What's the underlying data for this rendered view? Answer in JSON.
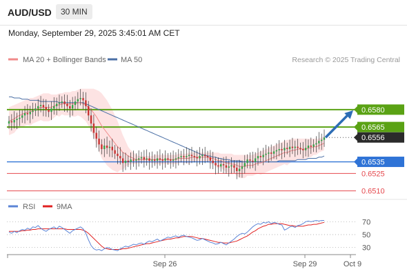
{
  "header": {
    "symbol": "AUD/USD",
    "timeframe": "30 MIN",
    "datetime": "Monday, September 29, 2025 3:45:01 AM CET"
  },
  "credit": "Research © 2025 Trading Central",
  "colors": {
    "bull": "#36a14a",
    "bear": "#c73232",
    "ma20": "#f08a8a",
    "bollinger_fill": "#fde3e3",
    "ma50": "#4a6fa5",
    "resistance": "#5aa214",
    "support_blue": "#2f73d6",
    "support_red": "#e5484d",
    "rsi": "#5b84d6",
    "rsi_ma": "#e02020",
    "arrow": "#2d6db5"
  },
  "chart_data": [
    {
      "type": "candlestick",
      "legend": [
        "MA 20 + Bollinger Bands",
        "MA 50"
      ],
      "ylim": [
        0.6505,
        0.6615
      ],
      "x_ticks": [
        "Sep 26",
        "Sep 29",
        "Oct 9"
      ],
      "closes": [
        0.657,
        0.6569,
        0.6571,
        0.6572,
        0.6573,
        0.6575,
        0.6577,
        0.6576,
        0.6578,
        0.6579,
        0.6581,
        0.6583,
        0.6584,
        0.6582,
        0.658,
        0.6578,
        0.6581,
        0.6583,
        0.6585,
        0.6586,
        0.6587,
        0.6585,
        0.6583,
        0.6581,
        0.6584,
        0.6587,
        0.6589,
        0.659,
        0.6588,
        0.6583,
        0.6575,
        0.6568,
        0.656,
        0.6555,
        0.655,
        0.6546,
        0.6549,
        0.6547,
        0.6548,
        0.6545,
        0.6542,
        0.654,
        0.6538,
        0.6534,
        0.6536,
        0.6535,
        0.6537,
        0.6536,
        0.6537,
        0.6538,
        0.6539,
        0.6537,
        0.6538,
        0.6536,
        0.6537,
        0.6536,
        0.6538,
        0.6537,
        0.6536,
        0.6538,
        0.6537,
        0.6536,
        0.6537,
        0.6538,
        0.6539,
        0.654,
        0.6539,
        0.654,
        0.6541,
        0.654,
        0.6539,
        0.6538,
        0.654,
        0.6541,
        0.654,
        0.6539,
        0.6536,
        0.6534,
        0.6532,
        0.6531,
        0.6533,
        0.6532,
        0.653,
        0.6531,
        0.6532,
        0.653,
        0.6527,
        0.6529,
        0.6531,
        0.6534,
        0.6537,
        0.6536,
        0.6535,
        0.6538,
        0.654,
        0.6539,
        0.6541,
        0.6542,
        0.6543,
        0.6542,
        0.6544,
        0.6545,
        0.6546,
        0.6545,
        0.6547,
        0.6546,
        0.6548,
        0.6547,
        0.6548,
        0.6547,
        0.6546,
        0.6545,
        0.6547,
        0.6549,
        0.6548,
        0.655,
        0.6551,
        0.6553,
        0.6554,
        0.6556
      ],
      "ma20": [
        0.657,
        0.6571,
        0.6572,
        0.6574,
        0.6575,
        0.6576,
        0.6577,
        0.6578,
        0.6578,
        0.6579,
        0.658,
        0.6581,
        0.6582,
        0.6582,
        0.6582,
        0.6582,
        0.6582,
        0.6583,
        0.6584,
        0.6584,
        0.6585,
        0.6585,
        0.6585,
        0.6585,
        0.6585,
        0.6585,
        0.6586,
        0.6586,
        0.6585,
        0.6584,
        0.6582,
        0.658,
        0.6577,
        0.6574,
        0.657,
        0.6566,
        0.6563,
        0.656,
        0.6557,
        0.6554,
        0.6551,
        0.6548,
        0.6546,
        0.6543,
        0.6542,
        0.654,
        0.6539,
        0.6538,
        0.6537,
        0.6537,
        0.6537,
        0.6537,
        0.6537,
        0.6537,
        0.6537,
        0.6537,
        0.6537,
        0.6537,
        0.6537,
        0.6537,
        0.6537,
        0.6537,
        0.6537,
        0.6537,
        0.6538,
        0.6538,
        0.6538,
        0.6538,
        0.6538,
        0.6539,
        0.6539,
        0.6539,
        0.6539,
        0.6539,
        0.6539,
        0.6539,
        0.6538,
        0.6538,
        0.6537,
        0.6536,
        0.6536,
        0.6535,
        0.6534,
        0.6534,
        0.6533,
        0.6533,
        0.6532,
        0.6531,
        0.6531,
        0.6531,
        0.6532,
        0.6532,
        0.6532,
        0.6533,
        0.6534,
        0.6534,
        0.6535,
        0.6536,
        0.6537,
        0.6538,
        0.6539,
        0.654,
        0.6541,
        0.6542,
        0.6543,
        0.6543,
        0.6544,
        0.6545,
        0.6545,
        0.6546,
        0.6546,
        0.6546,
        0.6546,
        0.6547,
        0.6547,
        0.6548,
        0.6548,
        0.6549,
        0.655,
        0.6551
      ],
      "bb_upper": [
        0.6582,
        0.6583,
        0.6584,
        0.6585,
        0.6586,
        0.6587,
        0.6588,
        0.6589,
        0.659,
        0.659,
        0.6591,
        0.6592,
        0.6593,
        0.6594,
        0.6594,
        0.6594,
        0.6593,
        0.6593,
        0.6593,
        0.6594,
        0.6594,
        0.6595,
        0.6595,
        0.6595,
        0.6596,
        0.6596,
        0.6597,
        0.6598,
        0.6598,
        0.6598,
        0.6598,
        0.6598,
        0.6598,
        0.6597,
        0.6596,
        0.6594,
        0.6591,
        0.6588,
        0.6584,
        0.658,
        0.6575,
        0.657,
        0.6564,
        0.6558,
        0.6553,
        0.6548,
        0.6545,
        0.6543,
        0.6541,
        0.654,
        0.654,
        0.654,
        0.654,
        0.654,
        0.654,
        0.6541,
        0.6541,
        0.6541,
        0.6541,
        0.6541,
        0.6541,
        0.6541,
        0.6541,
        0.6541,
        0.6542,
        0.6542,
        0.6542,
        0.6542,
        0.6543,
        0.6543,
        0.6543,
        0.6543,
        0.6543,
        0.6543,
        0.6543,
        0.6543,
        0.6543,
        0.6543,
        0.6543,
        0.6543,
        0.6542,
        0.6542,
        0.6542,
        0.6542,
        0.6542,
        0.6541,
        0.6541,
        0.6541,
        0.6541,
        0.6541,
        0.6541,
        0.6541,
        0.6541,
        0.6542,
        0.6543,
        0.6544,
        0.6545,
        0.6546,
        0.6547,
        0.6548,
        0.6549,
        0.655,
        0.6551,
        0.6552,
        0.6553,
        0.6554,
        0.6554,
        0.6555,
        0.6555,
        0.6555,
        0.6555,
        0.6555,
        0.6555,
        0.6555,
        0.6555,
        0.6555,
        0.6555,
        0.6555,
        0.6556,
        0.6557
      ],
      "bb_lower": [
        0.6558,
        0.6559,
        0.656,
        0.6563,
        0.6564,
        0.6565,
        0.6566,
        0.6567,
        0.6566,
        0.6568,
        0.6569,
        0.657,
        0.6571,
        0.657,
        0.657,
        0.657,
        0.6571,
        0.6573,
        0.6575,
        0.6574,
        0.6576,
        0.6575,
        0.6575,
        0.6575,
        0.6574,
        0.6574,
        0.6575,
        0.6574,
        0.6572,
        0.657,
        0.6566,
        0.6562,
        0.6556,
        0.6551,
        0.6544,
        0.6538,
        0.6535,
        0.6532,
        0.653,
        0.6528,
        0.6527,
        0.6526,
        0.6528,
        0.6528,
        0.6531,
        0.6532,
        0.6533,
        0.6533,
        0.6533,
        0.6534,
        0.6534,
        0.6534,
        0.6534,
        0.6534,
        0.6534,
        0.6533,
        0.6533,
        0.6533,
        0.6533,
        0.6533,
        0.6533,
        0.6533,
        0.6533,
        0.6533,
        0.6534,
        0.6534,
        0.6534,
        0.6534,
        0.6533,
        0.6535,
        0.6535,
        0.6535,
        0.6535,
        0.6535,
        0.6535,
        0.6535,
        0.6533,
        0.6533,
        0.6531,
        0.6529,
        0.653,
        0.6528,
        0.6526,
        0.6526,
        0.6524,
        0.6525,
        0.6523,
        0.6521,
        0.6521,
        0.6521,
        0.6523,
        0.6523,
        0.6523,
        0.6524,
        0.6525,
        0.6524,
        0.6525,
        0.6526,
        0.6527,
        0.6528,
        0.6529,
        0.653,
        0.6531,
        0.6532,
        0.6533,
        0.6532,
        0.6534,
        0.6535,
        0.6535,
        0.6537,
        0.6537,
        0.6537,
        0.6537,
        0.6539,
        0.6539,
        0.6541,
        0.6541,
        0.6543,
        0.6544,
        0.6545
      ],
      "ma50": [
        0.6591,
        0.6591,
        0.659,
        0.659,
        0.659,
        0.6589,
        0.6589,
        0.6589,
        0.6588,
        0.6588,
        0.6588,
        0.6588,
        0.6587,
        0.6587,
        0.6587,
        0.6587,
        0.6587,
        0.6587,
        0.6587,
        0.6586,
        0.6586,
        0.6586,
        0.6586,
        0.6586,
        0.6586,
        0.6586,
        0.6586,
        0.6586,
        0.6586,
        0.6585,
        0.6584,
        0.6583,
        0.6582,
        0.6581,
        0.658,
        0.6579,
        0.6578,
        0.6577,
        0.6576,
        0.6575,
        0.6574,
        0.6573,
        0.6572,
        0.6571,
        0.657,
        0.6569,
        0.6568,
        0.6567,
        0.6566,
        0.6565,
        0.6564,
        0.6563,
        0.6562,
        0.6561,
        0.656,
        0.6559,
        0.6558,
        0.6557,
        0.6556,
        0.6555,
        0.6554,
        0.6553,
        0.6552,
        0.6551,
        0.655,
        0.6549,
        0.6548,
        0.6547,
        0.6546,
        0.6545,
        0.6544,
        0.6543,
        0.6542,
        0.6541,
        0.6541,
        0.654,
        0.654,
        0.6539,
        0.6539,
        0.6538,
        0.6538,
        0.6537,
        0.6537,
        0.6537,
        0.6536,
        0.6536,
        0.6536,
        0.6536,
        0.6535,
        0.6535,
        0.6535,
        0.6535,
        0.6535,
        0.6535,
        0.6535,
        0.6535,
        0.6535,
        0.6535,
        0.6535,
        0.6535,
        0.6535,
        0.6535,
        0.6536,
        0.6536,
        0.6536,
        0.6536,
        0.6536,
        0.6536,
        0.6536,
        0.6537,
        0.6537,
        0.6537,
        0.6537,
        0.6538,
        0.6538,
        0.6538,
        0.6538,
        0.6539,
        0.6539,
        0.654
      ],
      "levels": [
        {
          "price": "0.6580",
          "kind": "resistance",
          "boxed": true
        },
        {
          "price": "0.6565",
          "kind": "resistance",
          "boxed": true
        },
        {
          "price": "0.6556",
          "kind": "last",
          "boxed": true
        },
        {
          "price": "0.6535",
          "kind": "support_blue",
          "boxed": true
        },
        {
          "price": "0.6525",
          "kind": "support_red",
          "boxed": false
        },
        {
          "price": "0.6510",
          "kind": "support_red",
          "boxed": false
        }
      ],
      "forecast_arrow": {
        "from": 0.6556,
        "to": 0.658
      }
    },
    {
      "type": "line",
      "legend": [
        "RSI",
        "9MA"
      ],
      "ylim": [
        20,
        80
      ],
      "y_ticks": [
        30,
        50,
        70
      ],
      "rsi": [
        54,
        52,
        55,
        53,
        56,
        58,
        57,
        60,
        58,
        62,
        61,
        64,
        60,
        57,
        55,
        58,
        60,
        62,
        59,
        63,
        61,
        58,
        55,
        52,
        56,
        58,
        60,
        62,
        59,
        52,
        42,
        33,
        28,
        26,
        27,
        25,
        28,
        30,
        29,
        27,
        26,
        25,
        28,
        30,
        32,
        31,
        33,
        35,
        34,
        36,
        37,
        35,
        38,
        40,
        39,
        41,
        43,
        40,
        42,
        44,
        46,
        45,
        47,
        48,
        46,
        48,
        49,
        47,
        46,
        45,
        43,
        41,
        42,
        44,
        42,
        40,
        38,
        37,
        35,
        36,
        38,
        36,
        34,
        37,
        40,
        43,
        47,
        50,
        52,
        51,
        54,
        58,
        62,
        65,
        67,
        66,
        69,
        68,
        70,
        67,
        69,
        68,
        66,
        65,
        57,
        59,
        62,
        63,
        61,
        64,
        65,
        67,
        70,
        71,
        70,
        71,
        72,
        71,
        72,
        72
      ],
      "rsi_ma": [
        55,
        55,
        55,
        55,
        55,
        56,
        56,
        57,
        57,
        58,
        58,
        59,
        59,
        59,
        59,
        59,
        59,
        59,
        59,
        59,
        59,
        59,
        58,
        58,
        58,
        58,
        58,
        58,
        57,
        55,
        52,
        48,
        44,
        40,
        36,
        32,
        29,
        28,
        27,
        27,
        27,
        27,
        27,
        28,
        28,
        29,
        30,
        31,
        32,
        33,
        34,
        35,
        36,
        36,
        37,
        38,
        39,
        40,
        41,
        42,
        43,
        43,
        44,
        45,
        45,
        46,
        47,
        47,
        47,
        47,
        46,
        45,
        44,
        44,
        43,
        42,
        41,
        40,
        39,
        38,
        38,
        37,
        37,
        37,
        38,
        39,
        40,
        42,
        44,
        46,
        48,
        51,
        54,
        56,
        59,
        61,
        63,
        64,
        66,
        66,
        67,
        67,
        67,
        67,
        66,
        65,
        64,
        64,
        63,
        63,
        63,
        63,
        64,
        65,
        65,
        66,
        66,
        67,
        68,
        69
      ]
    }
  ]
}
